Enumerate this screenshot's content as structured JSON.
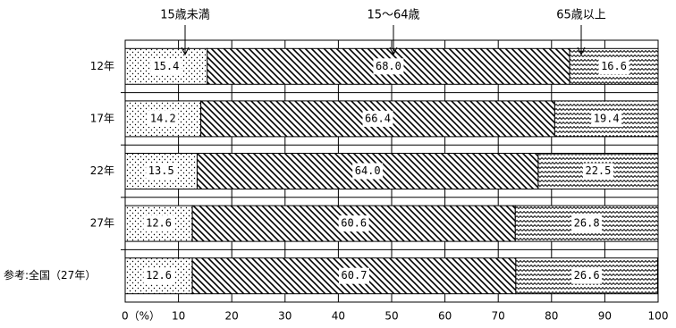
{
  "chart_data": {
    "type": "stacked-bar-horizontal",
    "categories": [
      "12年",
      "17年",
      "22年",
      "27年",
      "参考:全国（27年）"
    ],
    "series": [
      {
        "name": "15歳未満",
        "color": "#000000",
        "pattern": "dots",
        "values": [
          15.4,
          14.2,
          13.5,
          12.6,
          12.6
        ],
        "value_labels": [
          "15.4",
          "14.2",
          "13.5",
          "12.6",
          "12.6"
        ]
      },
      {
        "name": "15～64歳",
        "color": "#000000",
        "pattern": "hatch",
        "values": [
          68.0,
          66.4,
          64.0,
          60.6,
          60.7
        ],
        "value_labels": [
          "68.0",
          "66.4",
          "64.0",
          "60.6",
          "60.7"
        ]
      },
      {
        "name": "65歳以上",
        "color": "#000000",
        "pattern": "zigzag",
        "values": [
          16.6,
          19.4,
          22.5,
          26.8,
          26.6
        ],
        "value_labels": [
          "16.6",
          "19.4",
          "22.5",
          "26.8",
          "26.6"
        ]
      }
    ],
    "xlim": [
      0,
      100
    ],
    "xticks": [
      {
        "value": 0,
        "label": "0（%）"
      },
      10,
      20,
      30,
      40,
      50,
      60,
      70,
      80,
      90,
      100
    ],
    "grid": true
  }
}
